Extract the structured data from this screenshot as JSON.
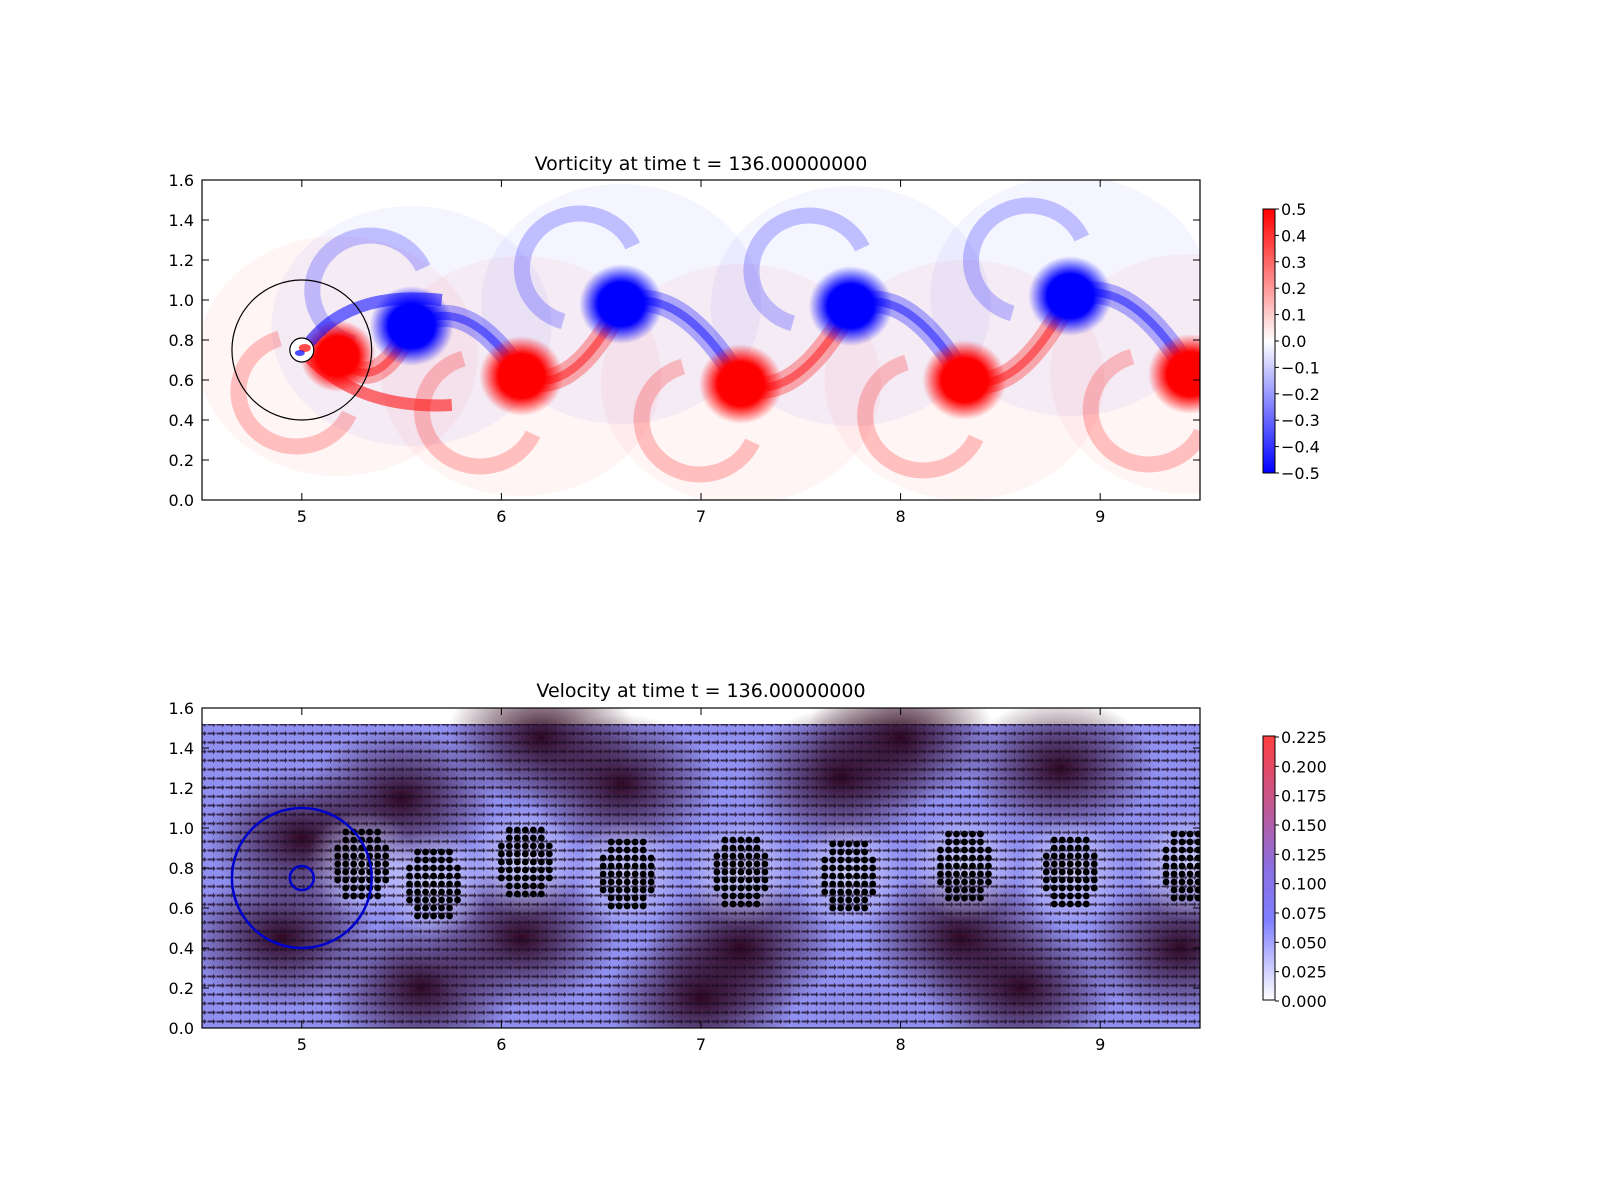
{
  "chart_data": [
    {
      "type": "heatmap",
      "title": "Vorticity at time t =   136.00000000",
      "xlabel": "",
      "ylabel": "",
      "xlim": [
        4.5,
        9.5
      ],
      "ylim": [
        0.0,
        1.6
      ],
      "xticks": [
        "5",
        "6",
        "7",
        "8",
        "9"
      ],
      "yticks": [
        "0.0",
        "0.2",
        "0.4",
        "0.6",
        "0.8",
        "1.0",
        "1.2",
        "1.4",
        "1.6"
      ],
      "colorbar": {
        "range": [
          -0.5,
          0.5
        ],
        "ticks": [
          "0.5",
          "0.4",
          "0.3",
          "0.2",
          "0.1",
          "0.0",
          "−0.1",
          "−0.2",
          "−0.3",
          "−0.4",
          "−0.5"
        ],
        "colors": {
          "low": "#0000ff",
          "mid": "#ffffff",
          "high": "#ff0000"
        }
      },
      "vortices": [
        {
          "x": 5.18,
          "y": 0.72,
          "sign": 1,
          "strength": 0.35
        },
        {
          "x": 5.55,
          "y": 0.87,
          "sign": -1,
          "strength": 0.5
        },
        {
          "x": 6.1,
          "y": 0.62,
          "sign": 1,
          "strength": 0.5
        },
        {
          "x": 6.6,
          "y": 0.98,
          "sign": -1,
          "strength": 0.5
        },
        {
          "x": 7.2,
          "y": 0.58,
          "sign": 1,
          "strength": 0.5
        },
        {
          "x": 7.75,
          "y": 0.97,
          "sign": -1,
          "strength": 0.5
        },
        {
          "x": 8.32,
          "y": 0.6,
          "sign": 1,
          "strength": 0.5
        },
        {
          "x": 8.85,
          "y": 1.02,
          "sign": -1,
          "strength": 0.5
        },
        {
          "x": 9.45,
          "y": 0.63,
          "sign": 1,
          "strength": 0.5
        }
      ],
      "cylinder": {
        "x": 5.0,
        "y": 0.75,
        "r": 0.06
      },
      "domain_circle": {
        "x": 5.0,
        "y": 0.75,
        "r": 0.35
      }
    },
    {
      "type": "heatmap",
      "title": "Velocity at time t =   136.00000000",
      "xlabel": "",
      "ylabel": "",
      "xlim": [
        4.5,
        9.5
      ],
      "ylim": [
        0.0,
        1.6
      ],
      "xticks": [
        "5",
        "6",
        "7",
        "8",
        "9"
      ],
      "yticks": [
        "0.0",
        "0.2",
        "0.4",
        "0.6",
        "0.8",
        "1.0",
        "1.2",
        "1.4",
        "1.6"
      ],
      "colorbar": {
        "range": [
          0.0,
          0.225
        ],
        "ticks": [
          "0.225",
          "0.200",
          "0.175",
          "0.150",
          "0.125",
          "0.100",
          "0.075",
          "0.050",
          "0.025",
          "0.000"
        ],
        "colors": {
          "low": "#ffffff",
          "mid": "#7f7fff",
          "high": "#ff3f3f"
        }
      },
      "field_top": 1.52,
      "dot_clusters": [
        {
          "x": 5.3,
          "y": 0.82
        },
        {
          "x": 5.66,
          "y": 0.72
        },
        {
          "x": 6.12,
          "y": 0.83
        },
        {
          "x": 6.63,
          "y": 0.77
        },
        {
          "x": 7.2,
          "y": 0.78
        },
        {
          "x": 7.74,
          "y": 0.76
        },
        {
          "x": 8.32,
          "y": 0.81
        },
        {
          "x": 8.85,
          "y": 0.78
        },
        {
          "x": 9.45,
          "y": 0.81
        }
      ],
      "cylinder": {
        "x": 5.0,
        "y": 0.75,
        "r": 0.06
      },
      "domain_circle": {
        "x": 5.0,
        "y": 0.75,
        "r": 0.35
      }
    }
  ]
}
